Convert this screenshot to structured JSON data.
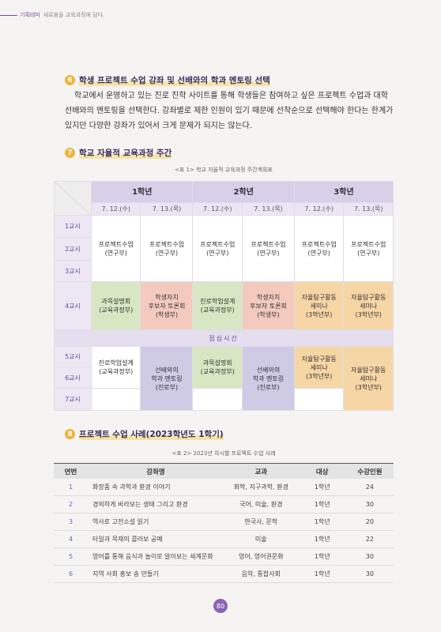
{
  "header": {
    "category": "기획테마",
    "title": "새로움을 교육과정에 담다."
  },
  "section6": {
    "number": "6",
    "title": "학생 프로젝트 수업 강좌 및 선배와의 학과 멘토링 선택",
    "body": "학교에서 운영하고 있는 진로 진학 사이트를 통해 학생들은 참여하고 싶은 프로젝트 수업과 대학 선배와의 멘토링을 선택한다. 강좌별로 제한 인원이 있기 때문에 선착순으로 선택해야 한다는 한계가 있지만 다양한 강좌가 있어서 크게 문제가 되지는 않는다."
  },
  "section7": {
    "number": "7",
    "title": "학교 자율적 교육과정 주간"
  },
  "table1": {
    "caption": "<표 1> 학교 자율적 교육과정 주간계획표",
    "grades": [
      "1학년",
      "2학년",
      "3학년"
    ],
    "dates": [
      "7. 12.(수)",
      "7. 13.(목)",
      "7. 12.(수)",
      "7. 13.(목)",
      "7. 12.(수)",
      "7. 13.(목)"
    ],
    "periods": [
      "1교시",
      "2교시",
      "3교시",
      "4교시",
      "5교시",
      "6교시",
      "7교시"
    ],
    "lunch": "점심시간",
    "morning": [
      "프로젝트수업\n(연구부)",
      "프로젝트수업\n(연구부)",
      "프로젝트수업\n(연구부)",
      "프로젝트수업\n(연구부)",
      "프로젝트수업\n(연구부)",
      "프로젝트수업\n(연구부)"
    ],
    "period4": [
      "과목설명회\n(교육과정부)",
      "학생자치\n후보자 토론회\n(학생부)",
      "진로학업설계\n(교육과정부)",
      "학생자치\n후보자 토론회\n(학생부)",
      "자율탐구활동\n세미나\n(3학년부)",
      "자율탐구활동\n세미나\n(3학년부)"
    ],
    "afternoon": [
      "진로학업설계\n(교육과정부)",
      "선배와의\n학과 멘토링\n(진로부)",
      "과목설명회\n(교육과정부)",
      "선배와의\n학과 멘토링\n(진로부)",
      "자율탐구활동\n세미나\n(3학년부)",
      "자율탐구활동\n세미나\n(3학년부)"
    ]
  },
  "section8": {
    "number": "8",
    "title": "프로젝트 수업 사례(2023학년도 1학기)"
  },
  "table2": {
    "caption": "<표 2> 2023년 차시별 프로젝트 수업 사례",
    "columns": [
      "연번",
      "강좌명",
      "교과",
      "대상",
      "수강인원"
    ],
    "rows": [
      [
        1,
        "화장품 속 과학과 환경 이야기",
        "화학, 지구과학, 환경",
        "1학년",
        24
      ],
      [
        2,
        "경외하게 바라보는 생태 그리고 환경",
        "국어, 미술, 환경",
        "1학년",
        30
      ],
      [
        3,
        "역사로 고전소설 읽기",
        "한국사, 문학",
        "1학년",
        20
      ],
      [
        4,
        "타일과 목재의 콜라보 공예",
        "미술",
        "1학년",
        22
      ],
      [
        5,
        "영어를 통해 음식과 놀이로 알아보는 세계문화",
        "영어, 영어권문화",
        "1학년",
        30
      ],
      [
        6,
        "지역 사회 홍보 송 만들기",
        "음악, 통합사회",
        "1학년",
        30
      ]
    ]
  },
  "page_number": "80"
}
